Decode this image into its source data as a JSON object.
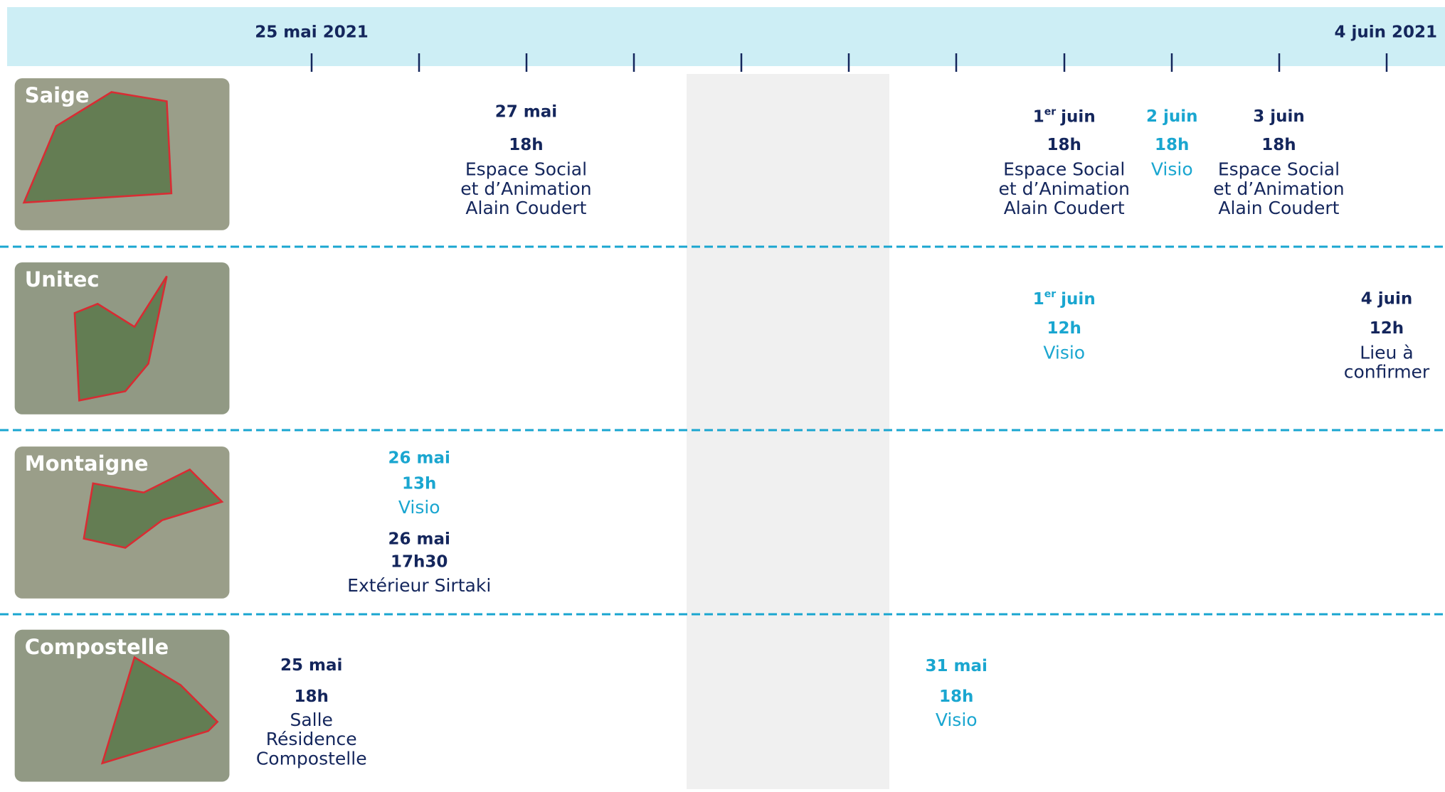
{
  "header": {
    "start": "25 mai 2021",
    "end": "4 juin 2021"
  },
  "rows": [
    {
      "name": "Saige",
      "events": [
        {
          "date": "27 mai",
          "time": "18h",
          "place": [
            "Espace Social",
            "et d’Animation",
            "Alain Coudert"
          ],
          "color": "#14265c"
        },
        {
          "date": "1",
          "date_sup": "er",
          "date_rest": "juin",
          "time": "18h",
          "place": [
            "Espace Social",
            "et d’Animation",
            "Alain Coudert"
          ],
          "color": "#14265c"
        },
        {
          "date": "2 juin",
          "time": "18h",
          "place": [
            "Visio"
          ],
          "color": "#1aa6d0"
        },
        {
          "date": "3 juin",
          "time": "18h",
          "place": [
            "Espace Social",
            "et d’Animation",
            "Alain Coudert"
          ],
          "color": "#14265c"
        }
      ]
    },
    {
      "name": "Unitec",
      "events": [
        {
          "date": "1",
          "date_sup": "er",
          "date_rest": "juin",
          "time": "12h",
          "place": [
            "Visio"
          ],
          "color": "#1aa6d0"
        },
        {
          "date": "4 juin",
          "time": "12h",
          "place": [
            "Lieu à",
            "confirmer"
          ],
          "color": "#14265c"
        }
      ]
    },
    {
      "name": "Montaigne",
      "events": [
        {
          "date": "26 mai",
          "time": "13h",
          "place": [
            "Visio"
          ],
          "color": "#1aa6d0"
        },
        {
          "date": "26 mai",
          "time": "17h30",
          "place": [
            "Extérieur Sirtaki"
          ],
          "color": "#14265c"
        }
      ]
    },
    {
      "name": "Compostelle",
      "events": [
        {
          "date": "25 mai",
          "time": "18h",
          "place": [
            "Salle",
            "Résidence",
            "Compostelle"
          ],
          "color": "#14265c"
        },
        {
          "date": "31 mai",
          "time": "18h",
          "place": [
            "Visio"
          ],
          "color": "#1aa6d0"
        }
      ]
    }
  ]
}
